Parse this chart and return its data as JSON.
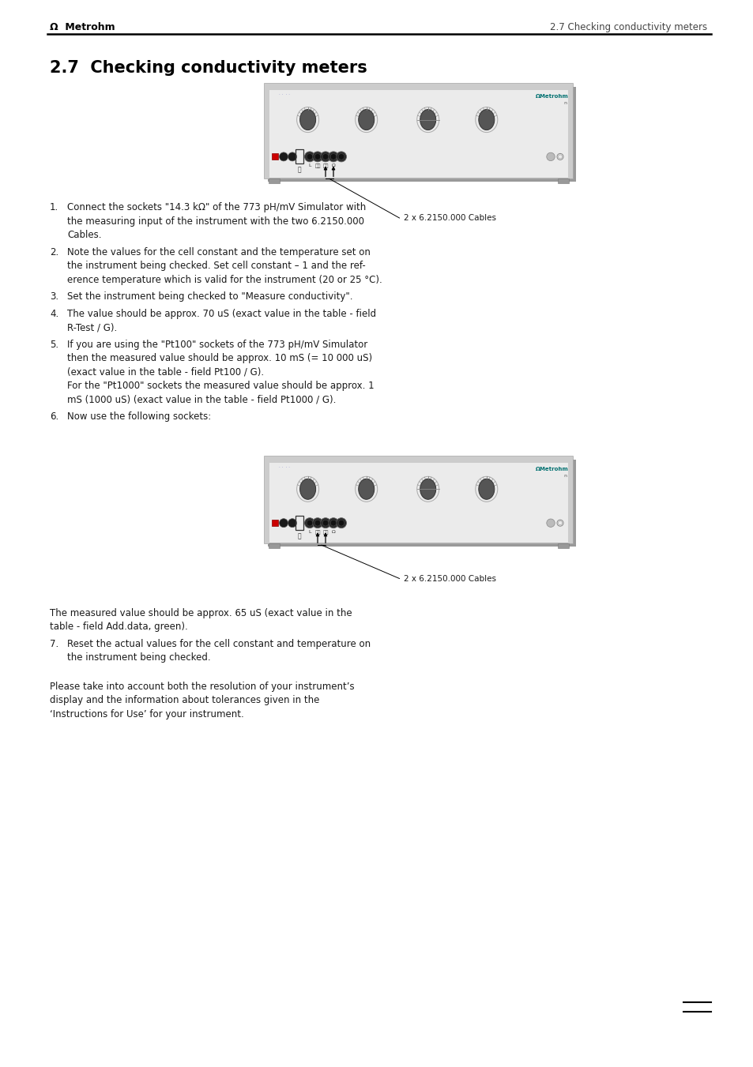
{
  "header_left_logo": "Ω",
  "header_left_text": "Metrohm",
  "header_right": "2.7 Checking conductivity meters",
  "section_title": "2.7  Checking conductivity meters",
  "cable_label": "2 x 6.2150.000 Cables",
  "item1": "Connect the sockets \"14.3 kΩ\" of the 773 pH/mV Simulator with the measuring input of the instrument with the two 6.2150.000 Cables.",
  "item2": "Note the values for the cell constant and the temperature set on the instrument being checked. Set cell constant – 1 and the reference temperature which is valid for the instrument (20 or 25 °C).",
  "item3": "Set the instrument being checked to \"Measure conductivity\".",
  "item4": "The value should be approx. 70 uS (exact value in the table - field R-Test / G).",
  "item5a": "If you are using the \"Pt100\" sockets of the 773 pH/mV Simulator then the measured value should be approx. 10 mS (= 10 000 uS) (exact value in the table - field Pt100 / G).",
  "item5b": "For the \"Pt1000\" sockets the measured value should be approx. 1 mS (1000 uS) (exact value in the table - field Pt1000 / G).",
  "item6": "Now use the following sockets:",
  "measured_text1": "The measured value should be approx. 65 uS (exact value in the",
  "measured_text2": "table - field Add.data, green).",
  "item7": "Reset the actual values for the cell constant and temperature on the instrument being checked.",
  "note": "Please take into account both the resolution of your instrument’s display and the information about tolerances given in the ‘Instructions for Use’ for your instrument.",
  "bg_color": "#ffffff",
  "text_color": "#1a1a1a",
  "device_face": "#ebebeb",
  "device_shadow": "#888888",
  "device_frame": "#aaaaaa",
  "knob_dark": "#555555",
  "knob_ring": "#999999",
  "metrohm_teal": "#007070",
  "red_btn": "#cc0000",
  "sock_dark": "#2a2a2a",
  "sock_ring": "#666666"
}
